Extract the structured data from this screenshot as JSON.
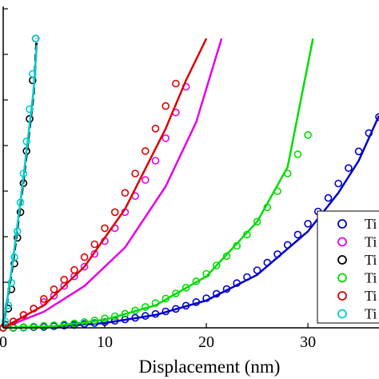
{
  "chart_data": {
    "type": "scatter",
    "title": "",
    "xlabel": "Displacement (nm)",
    "ylabel": "",
    "xlim": [
      0,
      37
    ],
    "ylim": [
      0,
      1
    ],
    "x_ticks": [
      0,
      10,
      20,
      30
    ],
    "x_tick_labels": [
      "0",
      "10",
      "20",
      "30"
    ],
    "grid": false,
    "legend_position": "bottom-right",
    "series": [
      {
        "name": "Ti",
        "color": "#0000cc",
        "fit_color": "#0000cc",
        "marker": "circle",
        "points": [
          [
            0,
            0.0
          ],
          [
            1,
            0.0
          ],
          [
            2,
            0.001
          ],
          [
            3,
            0.002
          ],
          [
            4,
            0.003
          ],
          [
            5,
            0.005
          ],
          [
            6,
            0.007
          ],
          [
            7,
            0.009
          ],
          [
            8,
            0.012
          ],
          [
            9,
            0.015
          ],
          [
            10,
            0.018
          ],
          [
            11,
            0.022
          ],
          [
            12,
            0.026
          ],
          [
            13,
            0.031
          ],
          [
            14,
            0.037
          ],
          [
            15,
            0.043
          ],
          [
            16,
            0.051
          ],
          [
            17,
            0.059
          ],
          [
            18,
            0.069
          ],
          [
            19,
            0.08
          ],
          [
            20,
            0.092
          ],
          [
            21,
            0.106
          ],
          [
            22,
            0.121
          ],
          [
            23,
            0.139
          ],
          [
            24,
            0.158
          ],
          [
            25,
            0.179
          ],
          [
            26,
            0.203
          ],
          [
            27,
            0.229
          ],
          [
            28,
            0.258
          ],
          [
            29,
            0.29
          ],
          [
            30,
            0.324
          ],
          [
            31,
            0.362
          ],
          [
            32,
            0.404
          ],
          [
            33,
            0.449
          ],
          [
            34,
            0.497
          ],
          [
            35,
            0.549
          ],
          [
            36,
            0.606
          ],
          [
            37,
            0.656
          ]
        ],
        "fit_points": [
          [
            0,
            0.0
          ],
          [
            5,
            0.003
          ],
          [
            10,
            0.015
          ],
          [
            15,
            0.04
          ],
          [
            20,
            0.085
          ],
          [
            25,
            0.165
          ],
          [
            30,
            0.3
          ],
          [
            33,
            0.42
          ],
          [
            35,
            0.52
          ],
          [
            37,
            0.66
          ]
        ]
      },
      {
        "name": "Ti",
        "color": "#e600e6",
        "fit_color": "#e600e6",
        "marker": "circle",
        "points": [
          [
            0,
            0.0
          ],
          [
            1,
            0.02
          ],
          [
            2,
            0.04
          ],
          [
            3,
            0.06
          ],
          [
            4,
            0.08
          ],
          [
            5,
            0.1
          ],
          [
            6,
            0.13
          ],
          [
            7,
            0.16
          ],
          [
            8,
            0.19
          ],
          [
            9,
            0.23
          ],
          [
            10,
            0.27
          ],
          [
            11,
            0.31
          ],
          [
            12,
            0.36
          ],
          [
            13,
            0.41
          ],
          [
            14,
            0.46
          ],
          [
            15,
            0.52
          ],
          [
            16,
            0.59
          ],
          [
            17,
            0.67
          ],
          [
            18,
            0.75
          ]
        ],
        "fit_points": [
          [
            0,
            0.0
          ],
          [
            4,
            0.05
          ],
          [
            8,
            0.13
          ],
          [
            12,
            0.25
          ],
          [
            16,
            0.44
          ],
          [
            19,
            0.64
          ],
          [
            21.5,
            0.9
          ]
        ]
      },
      {
        "name": "Ti",
        "color": "#000000",
        "fit_color": "#000000",
        "marker": "circle",
        "points": [
          [
            0.2,
            0.01
          ],
          [
            0.5,
            0.06
          ],
          [
            0.8,
            0.12
          ],
          [
            1.1,
            0.2
          ],
          [
            1.4,
            0.28
          ],
          [
            1.7,
            0.36
          ],
          [
            2.0,
            0.45
          ],
          [
            2.3,
            0.55
          ],
          [
            2.6,
            0.65
          ],
          [
            2.9,
            0.77
          ],
          [
            3.2,
            0.9
          ]
        ],
        "fit_points": [
          [
            0,
            0.0
          ],
          [
            1,
            0.21
          ],
          [
            2,
            0.46
          ],
          [
            3,
            0.73
          ],
          [
            3.3,
            0.9
          ]
        ]
      },
      {
        "name": "Ti",
        "color": "#00dd00",
        "fit_color": "#00dd00",
        "marker": "circle",
        "points": [
          [
            0,
            0.0
          ],
          [
            1,
            0.001
          ],
          [
            2,
            0.002
          ],
          [
            3,
            0.004
          ],
          [
            4,
            0.006
          ],
          [
            5,
            0.008
          ],
          [
            6,
            0.011
          ],
          [
            7,
            0.014
          ],
          [
            8,
            0.018
          ],
          [
            9,
            0.023
          ],
          [
            10,
            0.029
          ],
          [
            11,
            0.036
          ],
          [
            12,
            0.044
          ],
          [
            13,
            0.054
          ],
          [
            14,
            0.065
          ],
          [
            15,
            0.077
          ],
          [
            16,
            0.091
          ],
          [
            17,
            0.107
          ],
          [
            18,
            0.125
          ],
          [
            19,
            0.145
          ],
          [
            20,
            0.168
          ],
          [
            21,
            0.194
          ],
          [
            22,
            0.223
          ],
          [
            23,
            0.255
          ],
          [
            24,
            0.29
          ],
          [
            25,
            0.33
          ],
          [
            26,
            0.375
          ],
          [
            27,
            0.425
          ],
          [
            28,
            0.48
          ],
          [
            29,
            0.54
          ],
          [
            30,
            0.6
          ]
        ],
        "fit_points": [
          [
            0,
            0.0
          ],
          [
            5,
            0.005
          ],
          [
            10,
            0.025
          ],
          [
            15,
            0.07
          ],
          [
            20,
            0.16
          ],
          [
            25,
            0.33
          ],
          [
            28,
            0.5
          ],
          [
            30.5,
            0.9
          ]
        ]
      },
      {
        "name": "Ti",
        "color": "#dd0000",
        "fit_color": "#dd0000",
        "marker": "circle",
        "points": [
          [
            0,
            0.0
          ],
          [
            1,
            0.02
          ],
          [
            2,
            0.04
          ],
          [
            3,
            0.06
          ],
          [
            4,
            0.09
          ],
          [
            5,
            0.12
          ],
          [
            6,
            0.15
          ],
          [
            7,
            0.18
          ],
          [
            8,
            0.22
          ],
          [
            9,
            0.26
          ],
          [
            10,
            0.31
          ],
          [
            11,
            0.36
          ],
          [
            12,
            0.42
          ],
          [
            13,
            0.48
          ],
          [
            14,
            0.55
          ],
          [
            15,
            0.62
          ],
          [
            16,
            0.69
          ],
          [
            17,
            0.76
          ]
        ],
        "fit_points": [
          [
            0,
            0.0
          ],
          [
            4,
            0.07
          ],
          [
            8,
            0.19
          ],
          [
            12,
            0.37
          ],
          [
            16,
            0.62
          ],
          [
            18,
            0.77
          ],
          [
            20,
            0.9
          ]
        ]
      },
      {
        "name": "Ti",
        "color": "#00cccc",
        "fit_color": "#00cccc",
        "marker": "circle",
        "points": [
          [
            0.2,
            0.02
          ],
          [
            0.5,
            0.07
          ],
          [
            0.8,
            0.14
          ],
          [
            1.1,
            0.22
          ],
          [
            1.4,
            0.3
          ],
          [
            1.7,
            0.39
          ],
          [
            2.0,
            0.48
          ],
          [
            2.3,
            0.58
          ],
          [
            2.6,
            0.68
          ],
          [
            2.9,
            0.79
          ],
          [
            3.2,
            0.9
          ]
        ],
        "fit_points": [
          [
            0,
            0.0
          ],
          [
            1,
            0.22
          ],
          [
            2,
            0.47
          ],
          [
            3,
            0.74
          ],
          [
            3.3,
            0.88
          ]
        ]
      }
    ]
  },
  "legend": {
    "items": [
      {
        "label": "Ti",
        "color": "#0000cc"
      },
      {
        "label": "Ti",
        "color": "#e600e6"
      },
      {
        "label": "Ti",
        "color": "#000000"
      },
      {
        "label": "Ti",
        "color": "#00dd00"
      },
      {
        "label": "Ti",
        "color": "#dd0000"
      },
      {
        "label": "Ti",
        "color": "#00cccc"
      }
    ]
  }
}
